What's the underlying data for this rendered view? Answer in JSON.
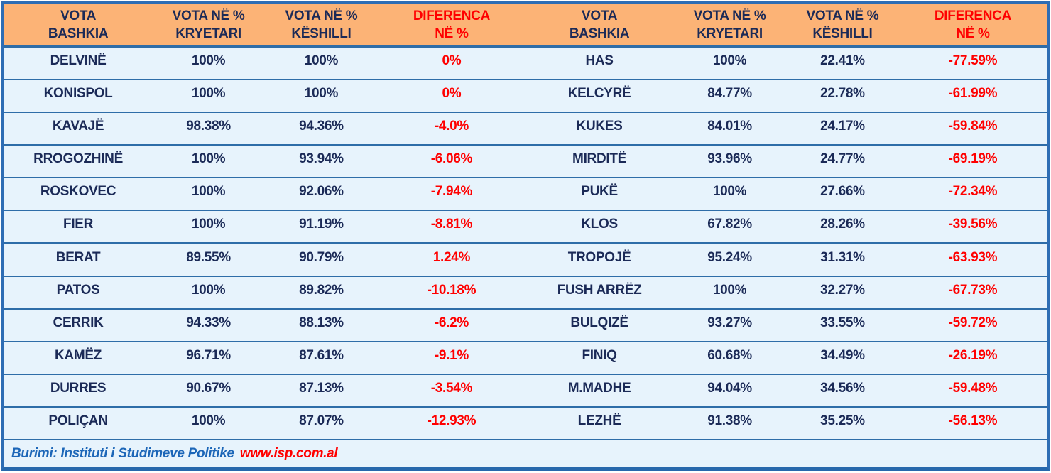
{
  "header": {
    "columns": [
      {
        "line1": "VOTA",
        "line2": "BASHKIA"
      },
      {
        "line1": "VOTA NË %",
        "line2": "KRYETARI"
      },
      {
        "line1": "VOTA NË %",
        "line2": "KËSHILLI"
      },
      {
        "line1": "DIFERENCA",
        "line2": "NË %"
      }
    ]
  },
  "table": {
    "left_rows": [
      {
        "bashkia": "DELVINË",
        "kryetari": "100%",
        "keshilli": "100%",
        "diferenca": "0%"
      },
      {
        "bashkia": "KONISPOL",
        "kryetari": "100%",
        "keshilli": "100%",
        "diferenca": "0%"
      },
      {
        "bashkia": "KAVAJË",
        "kryetari": "98.38%",
        "keshilli": "94.36%",
        "diferenca": "-4.0%"
      },
      {
        "bashkia": "RROGOZHINË",
        "kryetari": "100%",
        "keshilli": "93.94%",
        "diferenca": "-6.06%"
      },
      {
        "bashkia": "ROSKOVEC",
        "kryetari": "100%",
        "keshilli": "92.06%",
        "diferenca": "-7.94%"
      },
      {
        "bashkia": "FIER",
        "kryetari": "100%",
        "keshilli": "91.19%",
        "diferenca": "-8.81%"
      },
      {
        "bashkia": "BERAT",
        "kryetari": "89.55%",
        "keshilli": "90.79%",
        "diferenca": "1.24%"
      },
      {
        "bashkia": "PATOS",
        "kryetari": "100%",
        "keshilli": "89.82%",
        "diferenca": "-10.18%"
      },
      {
        "bashkia": "CERRIK",
        "kryetari": "94.33%",
        "keshilli": "88.13%",
        "diferenca": "-6.2%"
      },
      {
        "bashkia": "KAMËZ",
        "kryetari": "96.71%",
        "keshilli": "87.61%",
        "diferenca": "-9.1%"
      },
      {
        "bashkia": "DURRES",
        "kryetari": "90.67%",
        "keshilli": "87.13%",
        "diferenca": "-3.54%"
      },
      {
        "bashkia": "POLIÇAN",
        "kryetari": "100%",
        "keshilli": "87.07%",
        "diferenca": "-12.93%"
      }
    ],
    "right_rows": [
      {
        "bashkia": "HAS",
        "kryetari": "100%",
        "keshilli": "22.41%",
        "diferenca": "-77.59%"
      },
      {
        "bashkia": "KELCYRË",
        "kryetari": "84.77%",
        "keshilli": "22.78%",
        "diferenca": "-61.99%"
      },
      {
        "bashkia": "KUKES",
        "kryetari": "84.01%",
        "keshilli": "24.17%",
        "diferenca": "-59.84%"
      },
      {
        "bashkia": "MIRDITË",
        "kryetari": "93.96%",
        "keshilli": "24.77%",
        "diferenca": "-69.19%"
      },
      {
        "bashkia": "PUKË",
        "kryetari": "100%",
        "keshilli": "27.66%",
        "diferenca": "-72.34%"
      },
      {
        "bashkia": "KLOS",
        "kryetari": "67.82%",
        "keshilli": "28.26%",
        "diferenca": "-39.56%"
      },
      {
        "bashkia": "TROPOJË",
        "kryetari": "95.24%",
        "keshilli": "31.31%",
        "diferenca": "-63.93%"
      },
      {
        "bashkia": "FUSH ARRËZ",
        "kryetari": "100%",
        "keshilli": "32.27%",
        "diferenca": "-67.73%"
      },
      {
        "bashkia": "BULQIZË",
        "kryetari": "93.27%",
        "keshilli": "33.55%",
        "diferenca": "-59.72%"
      },
      {
        "bashkia": "FINIQ",
        "kryetari": "60.68%",
        "keshilli": "34.49%",
        "diferenca": "-26.19%"
      },
      {
        "bashkia": "M.MADHE",
        "kryetari": "94.04%",
        "keshilli": "34.56%",
        "diferenca": "-59.48%"
      },
      {
        "bashkia": "LEZHË",
        "kryetari": "91.38%",
        "keshilli": "35.25%",
        "diferenca": "-56.13%"
      }
    ]
  },
  "footer": {
    "source_label": "Burimi: Instituti i Studimeve Politike",
    "source_link": "www.isp.com.al"
  },
  "colors": {
    "header_bg": "#FCB376",
    "row_bg": "#E7F3FC",
    "grid_line": "#2E6DA8",
    "outer_border": "#2E6DB4",
    "text_navy": "#1B2A57",
    "text_red": "#FF0000",
    "footer_blue": "#1C66B8"
  },
  "chart_data": {
    "type": "table",
    "columns": [
      "BASHKIA",
      "VOTA NË % KRYETARI",
      "VOTA NË % KËSHILLI",
      "DIFERENCA NË %"
    ],
    "rows": [
      [
        "DELVINË",
        "100%",
        "100%",
        "0%"
      ],
      [
        "KONISPOL",
        "100%",
        "100%",
        "0%"
      ],
      [
        "KAVAJË",
        "98.38%",
        "94.36%",
        "-4.0%"
      ],
      [
        "RROGOZHINË",
        "100%",
        "93.94%",
        "-6.06%"
      ],
      [
        "ROSKOVEC",
        "100%",
        "92.06%",
        "-7.94%"
      ],
      [
        "FIER",
        "100%",
        "91.19%",
        "-8.81%"
      ],
      [
        "BERAT",
        "89.55%",
        "90.79%",
        "1.24%"
      ],
      [
        "PATOS",
        "100%",
        "89.82%",
        "-10.18%"
      ],
      [
        "CERRIK",
        "94.33%",
        "88.13%",
        "-6.2%"
      ],
      [
        "KAMËZ",
        "96.71%",
        "87.61%",
        "-9.1%"
      ],
      [
        "DURRES",
        "90.67%",
        "87.13%",
        "-3.54%"
      ],
      [
        "POLIÇAN",
        "100%",
        "87.07%",
        "-12.93%"
      ],
      [
        "HAS",
        "100%",
        "22.41%",
        "-77.59%"
      ],
      [
        "KELCYRË",
        "84.77%",
        "22.78%",
        "-61.99%"
      ],
      [
        "KUKES",
        "84.01%",
        "24.17%",
        "-59.84%"
      ],
      [
        "MIRDITË",
        "93.96%",
        "24.77%",
        "-69.19%"
      ],
      [
        "PUKË",
        "100%",
        "27.66%",
        "-72.34%"
      ],
      [
        "KLOS",
        "67.82%",
        "28.26%",
        "-39.56%"
      ],
      [
        "TROPOJË",
        "95.24%",
        "31.31%",
        "-63.93%"
      ],
      [
        "FUSH ARRËZ",
        "100%",
        "32.27%",
        "-67.73%"
      ],
      [
        "BULQIZË",
        "93.27%",
        "33.55%",
        "-59.72%"
      ],
      [
        "FINIQ",
        "60.68%",
        "34.49%",
        "-26.19%"
      ],
      [
        "M.MADHE",
        "94.04%",
        "34.56%",
        "-59.48%"
      ],
      [
        "LEZHË",
        "91.38%",
        "35.25%",
        "-56.13%"
      ]
    ],
    "layout": "two side-by-side panels of 12 rows each, sorted ascending by council vote share on the right panel",
    "source": "Burimi: Instituti i Studimeve Politike www.isp.com.al"
  }
}
